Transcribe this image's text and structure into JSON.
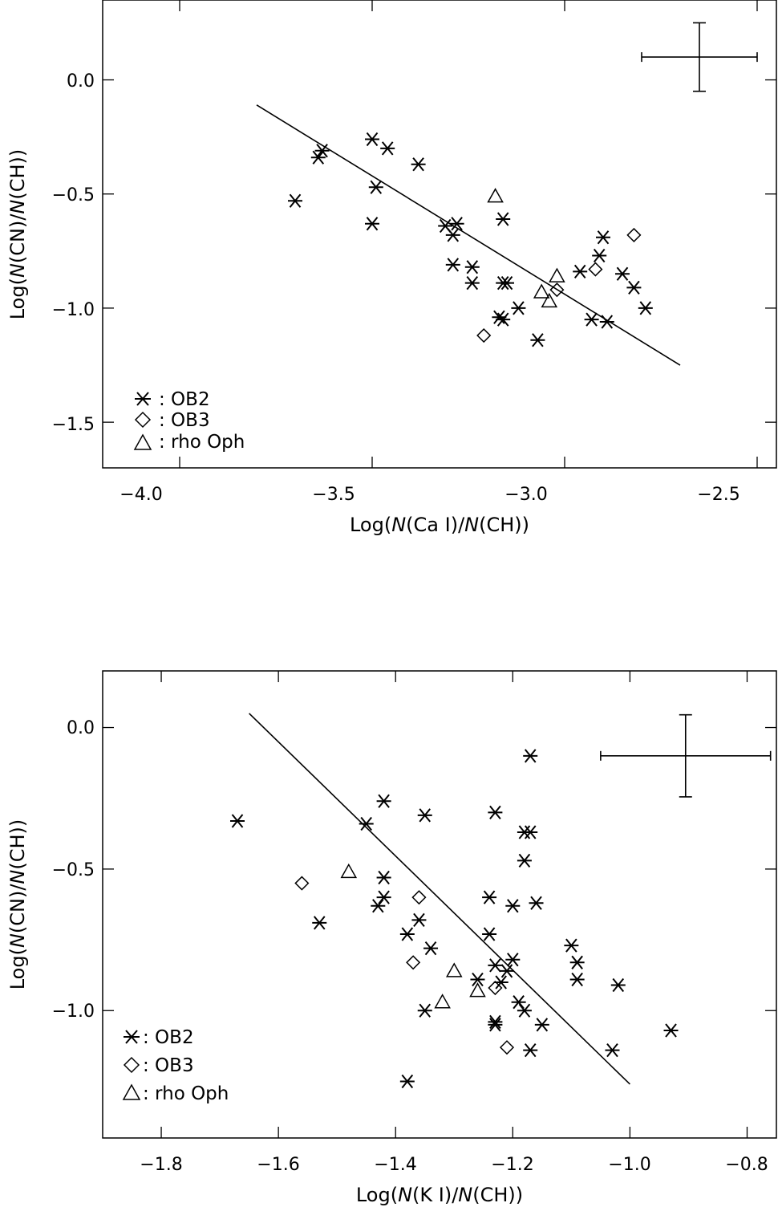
{
  "chart_data": [
    {
      "type": "scatter",
      "xlabel": {
        "pre": "Log(",
        "n1": "N",
        "mid": "(Ca I)/",
        "n2": "N",
        "post": "(CH))"
      },
      "ylabel": {
        "pre": "Log(",
        "n1": "N",
        "mid": "(CN)/",
        "n2": "N",
        "post": "(CH))"
      },
      "xlim": [
        -4.2,
        -2.45
      ],
      "ylim": [
        -1.7,
        0.35
      ],
      "xticks": [
        -4.0,
        -3.5,
        -3.0,
        -2.5
      ],
      "xtick_labels": [
        "−4.0",
        "−3.5",
        "−3.0",
        "−2.5"
      ],
      "yticks": [
        0.0,
        -0.5,
        -1.0,
        -1.5
      ],
      "ytick_labels": [
        "0.0",
        "−0.5",
        "−1.0",
        "−1.5"
      ],
      "legend": [
        {
          "marker": "asterisk",
          "label": ": OB2"
        },
        {
          "marker": "diamond",
          "label": ": OB3"
        },
        {
          "marker": "triangle",
          "label": ": rho Oph"
        }
      ],
      "fit_line": {
        "x": [
          -3.8,
          -2.7
        ],
        "y": [
          -0.11,
          -1.25
        ]
      },
      "error_bar": {
        "x": -2.65,
        "y": 0.1,
        "xerr": 0.15,
        "yerr": 0.15
      },
      "series": [
        {
          "name": "OB2",
          "marker": "asterisk",
          "points": [
            [
              -3.7,
              -0.53
            ],
            [
              -3.64,
              -0.34
            ],
            [
              -3.63,
              -0.31
            ],
            [
              -3.5,
              -0.26
            ],
            [
              -3.49,
              -0.47
            ],
            [
              -3.5,
              -0.63
            ],
            [
              -3.46,
              -0.3
            ],
            [
              -3.38,
              -0.37
            ],
            [
              -3.31,
              -0.64
            ],
            [
              -3.29,
              -0.68
            ],
            [
              -3.28,
              -0.63
            ],
            [
              -3.29,
              -0.81
            ],
            [
              -3.24,
              -0.82
            ],
            [
              -3.24,
              -0.89
            ],
            [
              -3.16,
              -0.61
            ],
            [
              -3.16,
              -0.89
            ],
            [
              -3.15,
              -0.89
            ],
            [
              -3.12,
              -1.0
            ],
            [
              -3.17,
              -1.04
            ],
            [
              -3.16,
              -1.05
            ],
            [
              -3.07,
              -1.14
            ],
            [
              -2.96,
              -0.84
            ],
            [
              -2.9,
              -0.69
            ],
            [
              -2.91,
              -0.77
            ],
            [
              -2.93,
              -1.05
            ],
            [
              -2.89,
              -1.06
            ],
            [
              -2.85,
              -0.85
            ],
            [
              -2.82,
              -0.91
            ],
            [
              -2.79,
              -1.0
            ]
          ]
        },
        {
          "name": "OB3",
          "marker": "diamond",
          "points": [
            [
              -3.21,
              -1.12
            ],
            [
              -3.02,
              -0.92
            ],
            [
              -2.92,
              -0.83
            ],
            [
              -2.82,
              -0.68
            ]
          ]
        },
        {
          "name": "rho Oph",
          "marker": "triangle",
          "points": [
            [
              -3.18,
              -0.51
            ],
            [
              -3.06,
              -0.93
            ],
            [
              -3.04,
              -0.97
            ],
            [
              -3.02,
              -0.86
            ]
          ]
        }
      ]
    },
    {
      "type": "scatter",
      "xlabel": {
        "pre": "Log(",
        "n1": "N",
        "mid": "(K I)/",
        "n2": "N",
        "post": "(CH))"
      },
      "ylabel": {
        "pre": "Log(",
        "n1": "N",
        "mid": "(CN)/",
        "n2": "N",
        "post": "(CH))"
      },
      "xlim": [
        -1.9,
        -0.75
      ],
      "ylim": [
        -1.45,
        0.2
      ],
      "xticks": [
        -1.8,
        -1.6,
        -1.4,
        -1.2,
        -1.0,
        -0.8
      ],
      "xtick_labels": [
        "−1.8",
        "−1.6",
        "−1.4",
        "−1.2",
        "−1.0",
        "−0.8"
      ],
      "yticks": [
        0.0,
        -0.5,
        -1.0
      ],
      "ytick_labels": [
        "0.0",
        "−0.5",
        "−1.0"
      ],
      "legend": [
        {
          "marker": "asterisk",
          "label": ": OB2"
        },
        {
          "marker": "diamond",
          "label": ": OB3"
        },
        {
          "marker": "triangle",
          "label": ": rho Oph"
        }
      ],
      "fit_line": {
        "x": [
          -1.65,
          -1.0
        ],
        "y": [
          0.05,
          -1.26
        ]
      },
      "error_bar": {
        "x": -0.905,
        "y": -0.1,
        "xerr": 0.145,
        "yerr": 0.145
      },
      "series": [
        {
          "name": "OB2",
          "marker": "asterisk",
          "points": [
            [
              -1.67,
              -0.33
            ],
            [
              -1.53,
              -0.69
            ],
            [
              -1.45,
              -0.34
            ],
            [
              -1.42,
              -0.26
            ],
            [
              -1.42,
              -0.53
            ],
            [
              -1.42,
              -0.6
            ],
            [
              -1.43,
              -0.63
            ],
            [
              -1.35,
              -0.31
            ],
            [
              -1.36,
              -0.68
            ],
            [
              -1.38,
              -0.73
            ],
            [
              -1.34,
              -0.78
            ],
            [
              -1.35,
              -1.0
            ],
            [
              -1.38,
              -1.25
            ],
            [
              -1.23,
              -0.3
            ],
            [
              -1.24,
              -0.6
            ],
            [
              -1.24,
              -0.73
            ],
            [
              -1.23,
              -0.84
            ],
            [
              -1.22,
              -0.9
            ],
            [
              -1.21,
              -0.86
            ],
            [
              -1.2,
              -0.82
            ],
            [
              -1.2,
              -0.63
            ],
            [
              -1.17,
              -0.37
            ],
            [
              -1.18,
              -0.37
            ],
            [
              -1.18,
              -0.47
            ],
            [
              -1.16,
              -0.62
            ],
            [
              -1.17,
              -0.1
            ],
            [
              -1.19,
              -0.97
            ],
            [
              -1.18,
              -1.0
            ],
            [
              -1.15,
              -1.05
            ],
            [
              -1.23,
              -1.04
            ],
            [
              -1.23,
              -1.05
            ],
            [
              -1.17,
              -1.14
            ],
            [
              -1.26,
              -0.89
            ],
            [
              -1.1,
              -0.77
            ],
            [
              -1.09,
              -0.83
            ],
            [
              -1.09,
              -0.89
            ],
            [
              -1.02,
              -0.91
            ],
            [
              -1.03,
              -1.14
            ],
            [
              -0.93,
              -1.07
            ]
          ]
        },
        {
          "name": "OB3",
          "marker": "diamond",
          "points": [
            [
              -1.56,
              -0.55
            ],
            [
              -1.36,
              -0.6
            ],
            [
              -1.37,
              -0.83
            ],
            [
              -1.23,
              -0.92
            ],
            [
              -1.21,
              -1.13
            ]
          ]
        },
        {
          "name": "rho Oph",
          "marker": "triangle",
          "points": [
            [
              -1.48,
              -0.51
            ],
            [
              -1.3,
              -0.86
            ],
            [
              -1.32,
              -0.97
            ],
            [
              -1.26,
              -0.93
            ]
          ]
        }
      ]
    }
  ]
}
